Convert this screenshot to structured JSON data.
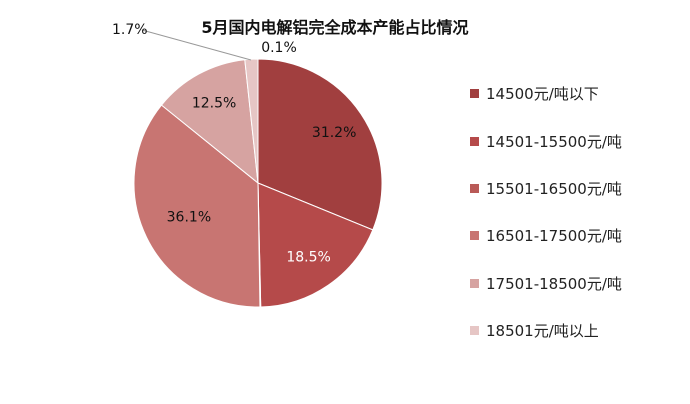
{
  "chart_data": {
    "type": "pie",
    "title": "5月国内电解铝完全成本产能占比情况",
    "slices": [
      {
        "label": "14500元/吨以下",
        "value": 31.2,
        "value_label": "31.2%",
        "color": "#a13f3f"
      },
      {
        "label": "14501-15500元/吨",
        "value": 18.5,
        "value_label": "18.5%",
        "color": "#b54a4a"
      },
      {
        "label": "15501-16500元/吨",
        "value": 0.1,
        "value_label": "0.1%",
        "color": "#b95a57"
      },
      {
        "label": "16501-17500元/吨",
        "value": 36.1,
        "value_label": "36.1%",
        "color": "#c87572"
      },
      {
        "label": "17501-18500元/吨",
        "value": 12.5,
        "value_label": "12.5%",
        "color": "#d6a3a1"
      },
      {
        "label": "18501元/吨以上",
        "value": 1.7,
        "value_label": "1.7%",
        "color": "#e6c6c5"
      }
    ],
    "legend_position": "right"
  }
}
